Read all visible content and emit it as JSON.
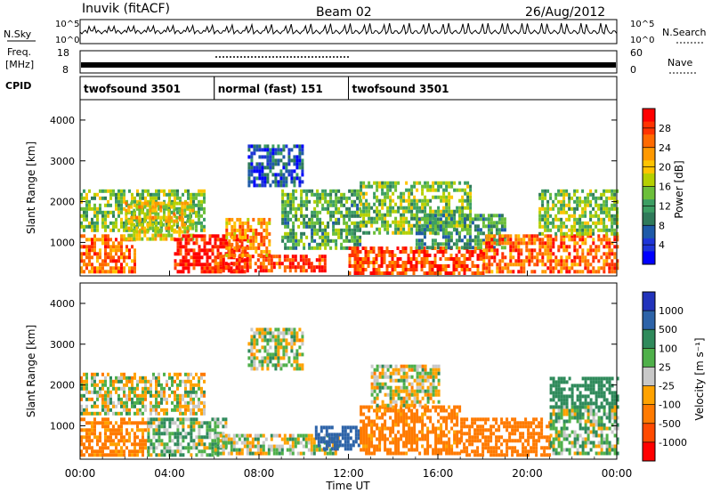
{
  "header": {
    "station": "Inuvik (fitACF)",
    "beam": "Beam 02",
    "date": "26/Aug/2012"
  },
  "top_panel": {
    "left_label": "N.Sky",
    "right_label": "N.Search",
    "left_ticks": [
      "10^5",
      "10^0"
    ],
    "right_ticks": [
      "10^5",
      "10^0"
    ]
  },
  "freq_panel": {
    "left_label_1": "Freq.",
    "left_label_2": "[MHz]",
    "right_label": "Nave",
    "left_ticks": [
      "18",
      "8"
    ],
    "right_ticks": [
      "60",
      "0"
    ]
  },
  "cpid_panel": {
    "label": "CPID",
    "segments": [
      {
        "label": "twofsound 3501",
        "start_hour": 0,
        "end_hour": 6
      },
      {
        "label": "normal (fast) 151",
        "start_hour": 6,
        "end_hour": 12
      },
      {
        "label": "twofsound 3501",
        "start_hour": 12,
        "end_hour": 24
      }
    ]
  },
  "power_panel": {
    "ylabel": "Slant Range [km]",
    "colorbar_label": "Power [dB]",
    "colorbar_ticks": [
      "28",
      "24",
      "20",
      "16",
      "12",
      "8",
      "4"
    ],
    "colors": [
      "#ff0000",
      "#ff3300",
      "#ff6a00",
      "#ff9900",
      "#ffc400",
      "#b5d000",
      "#6cbf3a",
      "#3c9e63",
      "#2f7a5a",
      "#1e5aa8",
      "#1e35d8",
      "#0000ff"
    ]
  },
  "velocity_panel": {
    "ylabel": "Slant Range [km]",
    "colorbar_label": "Velocity [m s⁻¹]",
    "colorbar_ticks": [
      "1000",
      "500",
      "100",
      "25",
      "-25",
      "-100",
      "-500",
      "-1000"
    ],
    "colors": [
      "#2233bb",
      "#2d63a8",
      "#2f8a5b",
      "#4fb04a",
      "#c8c8c8",
      "#ffa200",
      "#ff7a00",
      "#ff4a00",
      "#ff0000"
    ]
  },
  "x_axis": {
    "label": "Time UT",
    "ticks": [
      "00:00",
      "04:00",
      "08:00",
      "12:00",
      "16:00",
      "20:00",
      "00:00"
    ]
  },
  "chart_data": [
    {
      "type": "heatmap",
      "title": "Power",
      "xlabel": "Time UT",
      "ylabel": "Slant Range [km]",
      "x_range_hours": [
        0,
        24
      ],
      "ylim": [
        180,
        4500
      ],
      "yticks": [
        1000,
        2000,
        3000,
        4000
      ],
      "colorbar": {
        "label": "Power [dB]",
        "range": [
          0,
          30
        ],
        "ticks": [
          4,
          8,
          12,
          16,
          20,
          24,
          28
        ]
      },
      "regions": [
        {
          "t0": 0.0,
          "t1": 2.5,
          "r0": 300,
          "r1": 1200,
          "value": 24
        },
        {
          "t0": 0.0,
          "t1": 5.5,
          "r0": 1300,
          "r1": 2300,
          "value": 14
        },
        {
          "t0": 2.0,
          "t1": 5.0,
          "r0": 1100,
          "r1": 2000,
          "value": 18
        },
        {
          "t0": 4.2,
          "t1": 7.5,
          "r0": 250,
          "r1": 1200,
          "value": 28
        },
        {
          "t0": 6.0,
          "t1": 11.0,
          "r0": 300,
          "r1": 700,
          "value": 26
        },
        {
          "t0": 6.5,
          "t1": 8.5,
          "r0": 700,
          "r1": 1600,
          "value": 22
        },
        {
          "t0": 7.5,
          "t1": 10.0,
          "r0": 2400,
          "r1": 3400,
          "value": 6
        },
        {
          "t0": 9.0,
          "t1": 12.5,
          "r0": 900,
          "r1": 2300,
          "value": 12
        },
        {
          "t0": 12.0,
          "t1": 18.0,
          "r0": 250,
          "r1": 900,
          "value": 26
        },
        {
          "t0": 12.5,
          "t1": 17.5,
          "r0": 1200,
          "r1": 2500,
          "value": 14
        },
        {
          "t0": 15.0,
          "t1": 19.0,
          "r0": 900,
          "r1": 1700,
          "value": 10
        },
        {
          "t0": 18.0,
          "t1": 24.0,
          "r0": 250,
          "r1": 1200,
          "value": 24
        },
        {
          "t0": 20.5,
          "t1": 24.0,
          "r0": 1200,
          "r1": 2300,
          "value": 14
        }
      ]
    },
    {
      "type": "heatmap",
      "title": "Velocity",
      "xlabel": "Time UT",
      "ylabel": "Slant Range [km]",
      "x_range_hours": [
        0,
        24
      ],
      "ylim": [
        180,
        4500
      ],
      "yticks": [
        1000,
        2000,
        3000,
        4000
      ],
      "colorbar": {
        "label": "Velocity [m s⁻¹]",
        "range": [
          -1000,
          1000
        ],
        "ticks": [
          1000,
          500,
          100,
          25,
          -25,
          -100,
          -500,
          -1000
        ]
      },
      "regions": [
        {
          "t0": 0.0,
          "t1": 3.0,
          "r0": 300,
          "r1": 1200,
          "value": -150
        },
        {
          "t0": 0.0,
          "t1": 5.5,
          "r0": 1300,
          "r1": 2300,
          "value": 0
        },
        {
          "t0": 3.0,
          "t1": 6.5,
          "r0": 300,
          "r1": 1200,
          "value": 80
        },
        {
          "t0": 6.0,
          "t1": 11.5,
          "r0": 300,
          "r1": 800,
          "value": 0
        },
        {
          "t0": 7.5,
          "t1": 10.0,
          "r0": 2400,
          "r1": 3400,
          "value": 20
        },
        {
          "t0": 10.5,
          "t1": 12.5,
          "r0": 400,
          "r1": 1000,
          "value": 800
        },
        {
          "t0": 12.5,
          "t1": 17.0,
          "r0": 300,
          "r1": 1500,
          "value": -200
        },
        {
          "t0": 13.0,
          "t1": 16.0,
          "r0": 1500,
          "r1": 2500,
          "value": 0
        },
        {
          "t0": 17.0,
          "t1": 21.0,
          "r0": 300,
          "r1": 1200,
          "value": -300
        },
        {
          "t0": 21.0,
          "t1": 24.0,
          "r0": 300,
          "r1": 1500,
          "value": 60
        },
        {
          "t0": 21.0,
          "t1": 24.0,
          "r0": 1500,
          "r1": 2200,
          "value": 300
        }
      ]
    }
  ]
}
